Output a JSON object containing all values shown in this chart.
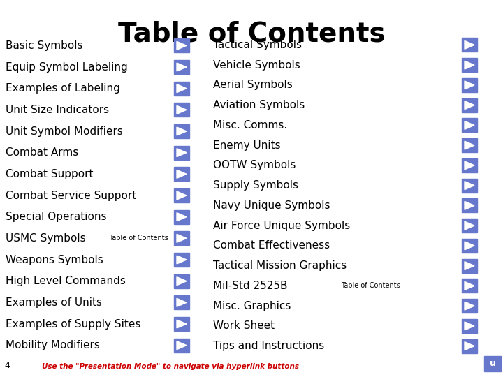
{
  "title": "Table of Contents",
  "title_fontsize": 28,
  "background_color": "#ffffff",
  "text_color": "#000000",
  "arrow_color": "#6677cc",
  "left_items": [
    "Basic Symbols",
    "Equip Symbol Labeling",
    "Examples of Labeling",
    "Unit Size Indicators",
    "Unit Symbol Modifiers",
    "Combat Arms",
    "Combat Support",
    "Combat Service Support",
    "Special Operations",
    "USMC Symbols",
    "Weapons Symbols",
    "High Level Commands",
    "Examples of Units",
    "Examples of Supply Sites",
    "Mobility Modifiers"
  ],
  "right_items": [
    "Tactical Symbols",
    "Vehicle Symbols",
    "Aerial Symbols",
    "Aviation Symbols",
    "Misc. Comms.",
    "Enemy Units",
    "OOTW Symbols",
    "Supply Symbols",
    "Navy Unique Symbols",
    "Air Force Unique Symbols",
    "Combat Effectiveness",
    "Tactical Mission Graphics",
    "Mil-Std 2525B",
    "Misc. Graphics",
    "Work Sheet",
    "Tips and Instructions"
  ],
  "usmc_note": "Table of Contents",
  "milstd_note": "Table of Contents",
  "footer_text": "Use the \"Presentation Mode\" to navigate via hyperlink buttons",
  "footer_color": "#cc0000",
  "page_num": "4",
  "item_fontsize": 11,
  "note_fontsize": 7,
  "footer_fontsize": 7.5
}
